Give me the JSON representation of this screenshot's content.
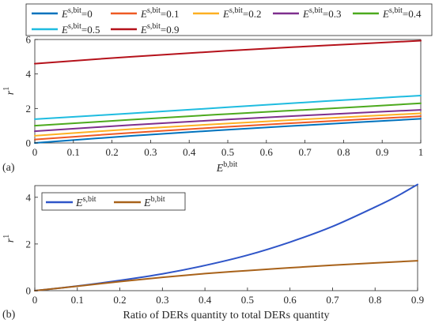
{
  "chart_data": [
    {
      "type": "line",
      "panel_label": "(a)",
      "xlabel": {
        "base": "E",
        "sup": "b,bit"
      },
      "ylabel": {
        "base": "r",
        "sup": "1"
      },
      "xlim": [
        0,
        1
      ],
      "ylim": [
        0,
        6
      ],
      "xticks": [
        "0",
        "0.1",
        "0.2",
        "0.3",
        "0.4",
        "0.5",
        "0.6",
        "0.7",
        "0.8",
        "0.9",
        "1"
      ],
      "yticks": [
        "0",
        "2",
        "4",
        "6"
      ],
      "grid": false,
      "legend_position": "top, outside plot, two rows",
      "series": [
        {
          "name": {
            "base": "E",
            "sup": "s,bit",
            "tail": "=0"
          },
          "color": "#0072BD",
          "x": [
            0,
            0.25,
            0.5,
            0.75,
            1
          ],
          "y": [
            0.0,
            0.41,
            0.77,
            1.09,
            1.4
          ]
        },
        {
          "name": {
            "base": "E",
            "sup": "s,bit",
            "tail": "=0.1"
          },
          "color": "#EE5A24",
          "x": [
            0,
            0.25,
            0.5,
            0.75,
            1
          ],
          "y": [
            0.2,
            0.59,
            0.94,
            1.25,
            1.55
          ]
        },
        {
          "name": {
            "base": "E",
            "sup": "s,bit",
            "tail": "=0.2"
          },
          "color": "#FDB022",
          "x": [
            0,
            0.25,
            0.5,
            0.75,
            1
          ],
          "y": [
            0.42,
            0.8,
            1.13,
            1.43,
            1.72
          ]
        },
        {
          "name": {
            "base": "E",
            "sup": "s,bit",
            "tail": "=0.3"
          },
          "color": "#7E2F8E",
          "x": [
            0,
            0.25,
            0.5,
            0.75,
            1
          ],
          "y": [
            0.68,
            1.04,
            1.36,
            1.65,
            1.92
          ]
        },
        {
          "name": {
            "base": "E",
            "sup": "s,bit",
            "tail": "=0.4"
          },
          "color": "#4DAA1E",
          "x": [
            0,
            0.25,
            0.5,
            0.75,
            1
          ],
          "y": [
            1.0,
            1.35,
            1.68,
            1.98,
            2.3
          ]
        },
        {
          "name": {
            "base": "E",
            "sup": "s,bit",
            "tail": "=0.5"
          },
          "color": "#1FBCE0",
          "x": [
            0,
            0.25,
            0.5,
            0.75,
            1
          ],
          "y": [
            1.38,
            1.72,
            2.07,
            2.42,
            2.75
          ]
        },
        {
          "name": {
            "base": "E",
            "sup": "s,bit",
            "tail": "=0.9"
          },
          "color": "#B5121B",
          "x": [
            0,
            0.25,
            0.5,
            0.75,
            1
          ],
          "y": [
            4.6,
            5.0,
            5.35,
            5.65,
            5.93
          ]
        }
      ]
    },
    {
      "type": "line",
      "panel_label": "(b)",
      "xlabel": {
        "base": "Ratio of DERs quantity to total DERs quantity"
      },
      "ylabel": {
        "base": "r",
        "sup": "1"
      },
      "xlim": [
        0,
        0.9
      ],
      "ylim": [
        0,
        4.5
      ],
      "xticks": [
        "0",
        "0.1",
        "0.2",
        "0.3",
        "0.4",
        "0.5",
        "0.6",
        "0.7",
        "0.8",
        "0.9"
      ],
      "yticks": [
        "0",
        "2",
        "4"
      ],
      "grid": false,
      "legend_position": "top-left",
      "series": [
        {
          "name": {
            "base": "E",
            "sup": "s,bit"
          },
          "color": "#2F55C8",
          "x": [
            0,
            0.1,
            0.2,
            0.3,
            0.4,
            0.5,
            0.6,
            0.7,
            0.8,
            0.85,
            0.9
          ],
          "y": [
            0,
            0.2,
            0.44,
            0.72,
            1.08,
            1.52,
            2.08,
            2.75,
            3.58,
            4.03,
            4.55
          ]
        },
        {
          "name": {
            "base": "E",
            "sup": "b,bit"
          },
          "color": "#A8621A",
          "x": [
            0,
            0.1,
            0.2,
            0.3,
            0.4,
            0.5,
            0.6,
            0.7,
            0.8,
            0.9
          ],
          "y": [
            0,
            0.19,
            0.39,
            0.57,
            0.73,
            0.86,
            0.98,
            1.09,
            1.19,
            1.28
          ]
        }
      ]
    }
  ]
}
